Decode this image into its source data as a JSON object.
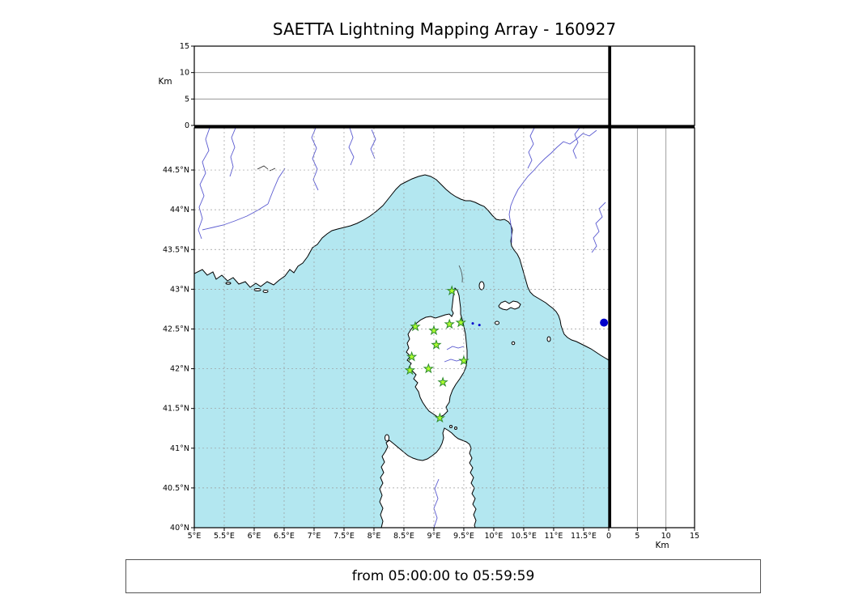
{
  "title": "SAETTA Lightning Mapping Array - 160927",
  "footer": {
    "text": "from 05:00:00 to 05:59:59"
  },
  "chart_data": {
    "type": "scatter",
    "title": "SAETTA Lightning Mapping Array - 160927",
    "time_window": "from 05:00:00 to 05:59:59",
    "layout": "xlma-style: altitude-vs-longitude top panel, lon/lat map main panel, altitude-vs-latitude right panel, empty corner panel",
    "map": {
      "lon_range": [
        5.0,
        11.92
      ],
      "lat_range": [
        40.0,
        45.03
      ],
      "lon_ticks": [
        5,
        5.5,
        6,
        6.5,
        7,
        7.5,
        8,
        8.5,
        9,
        9.5,
        10,
        10.5,
        11,
        11.5
      ],
      "lon_tick_labels": [
        "5°E",
        "5.5°E",
        "6°E",
        "6.5°E",
        "7°E",
        "7.5°E",
        "8°E",
        "8.5°E",
        "9°E",
        "9.5°E",
        "10°E",
        "10.5°E",
        "11°E",
        "11.5°E"
      ],
      "lat_ticks": [
        40,
        40.5,
        41,
        41.5,
        42,
        42.5,
        43,
        43.5,
        44,
        44.5
      ],
      "lat_tick_labels": [
        "40°N",
        "40.5°N",
        "41°N",
        "41.5°N",
        "42°N",
        "42.5°N",
        "43°N",
        "43.5°N",
        "44°N",
        "44.5°N"
      ],
      "grid": true
    },
    "altitude_axis": {
      "label": "Km",
      "range": [
        0,
        15
      ],
      "ticks": [
        0,
        5,
        10,
        15
      ],
      "tick_labels": [
        "0",
        "5",
        "10",
        "15"
      ],
      "ref_lines": [
        5,
        10
      ]
    },
    "stations": [
      {
        "lon": 9.3,
        "lat": 42.98
      },
      {
        "lon": 8.69,
        "lat": 42.53
      },
      {
        "lon": 9.0,
        "lat": 42.48
      },
      {
        "lon": 9.26,
        "lat": 42.56
      },
      {
        "lon": 9.45,
        "lat": 42.58
      },
      {
        "lon": 9.04,
        "lat": 42.3
      },
      {
        "lon": 8.63,
        "lat": 42.15
      },
      {
        "lon": 9.5,
        "lat": 42.1
      },
      {
        "lon": 8.6,
        "lat": 41.98
      },
      {
        "lon": 8.91,
        "lat": 42.0
      },
      {
        "lon": 9.15,
        "lat": 41.83
      },
      {
        "lon": 9.1,
        "lat": 41.38
      }
    ],
    "sources": [
      {
        "lon": 11.84,
        "lat": 42.58,
        "r": 5
      },
      {
        "lon": 9.65,
        "lat": 42.57,
        "r": 1.5
      },
      {
        "lon": 9.76,
        "lat": 42.55,
        "r": 1.5
      }
    ],
    "colors": {
      "sea": "#b3e7f0",
      "land": "#ffffff",
      "coastline": "#000000",
      "river": "#5a5ad0",
      "grid": "#9a9a9a",
      "station_fill": "#adff2f",
      "station_edge": "#2e8b2e",
      "source": "#0000cc"
    }
  }
}
